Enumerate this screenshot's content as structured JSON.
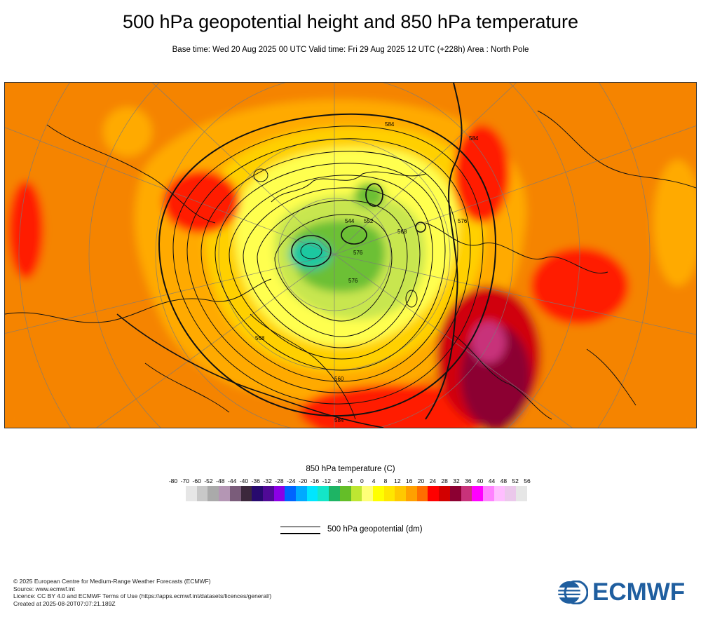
{
  "header": {
    "title": "500 hPa geopotential height and 850 hPa temperature",
    "subtitle": "Base time: Wed 20 Aug 2025 00 UTC Valid time: Fri 29 Aug 2025 12 UTC (+228h) Area : North Pole"
  },
  "map": {
    "projection": "north-polar stereographic",
    "area": "North Pole",
    "contour_labels": [
      "584",
      "584",
      "568",
      "568",
      "560",
      "544",
      "552",
      "576",
      "576",
      "576",
      "584"
    ]
  },
  "legend": {
    "title": "850 hPa temperature (C)",
    "ticks": [
      "-80",
      "-70",
      "-60",
      "-52",
      "-48",
      "-44",
      "-40",
      "-36",
      "-32",
      "-28",
      "-24",
      "-20",
      "-16",
      "-12",
      "-8",
      "-4",
      "0",
      "4",
      "8",
      "12",
      "16",
      "20",
      "24",
      "28",
      "32",
      "36",
      "40",
      "44",
      "48",
      "52",
      "56"
    ],
    "colors": [
      "#e6e6e6",
      "#c8c8c8",
      "#aaaaaa",
      "#b496b4",
      "#7a5c7a",
      "#3c283c",
      "#280a6e",
      "#500a96",
      "#8c00e6",
      "#0064ff",
      "#00aaff",
      "#00e6ff",
      "#14e6c8",
      "#1eb464",
      "#64be28",
      "#bee632",
      "#ffff78",
      "#ffff00",
      "#ffe600",
      "#ffc800",
      "#ffa000",
      "#ff6e00",
      "#ff0000",
      "#d20000",
      "#8c0032",
      "#c8327a",
      "#ff00ff",
      "#ff82ff",
      "#ffbeff",
      "#ebc8eb",
      "#e6e6e6"
    ]
  },
  "geopotential_legend": {
    "label": "500 hPa geopotential (dm)"
  },
  "footer": {
    "lines": [
      "© 2025 European Centre for Medium-Range Weather Forecasts (ECMWF)",
      "Source: www.ecmwf.int",
      "Licence: CC BY 4.0 and ECMWF Terms of Use (https://apps.ecmwf.int/datasets/licences/general/)",
      "Created at 2025-08-20T07:07:21.189Z"
    ],
    "logo_text": "ECMWF",
    "logo_color": "#1f5e9f"
  }
}
